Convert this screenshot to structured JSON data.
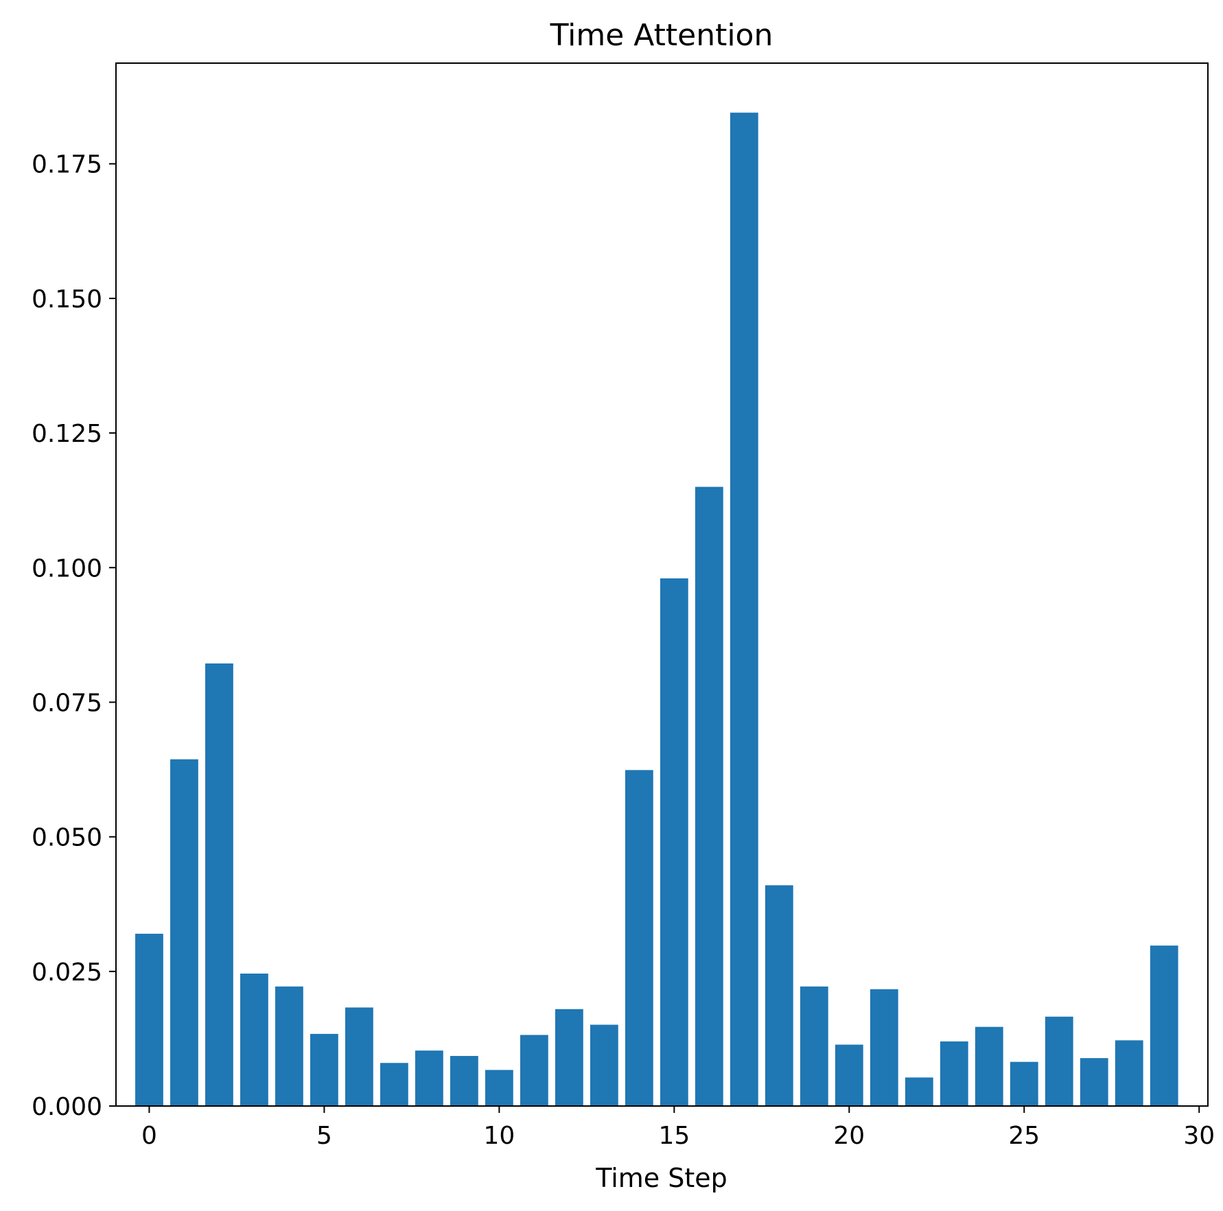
{
  "chart_data": {
    "type": "bar",
    "title": "Time Attention",
    "xlabel": "Time Step",
    "ylabel": "",
    "x": [
      0,
      1,
      2,
      3,
      4,
      5,
      6,
      7,
      8,
      9,
      10,
      11,
      12,
      13,
      14,
      15,
      16,
      17,
      18,
      19,
      20,
      21,
      22,
      23,
      24,
      25,
      26,
      27,
      28,
      29
    ],
    "values": [
      0.032,
      0.0644,
      0.0822,
      0.0246,
      0.0222,
      0.0134,
      0.0183,
      0.008,
      0.0103,
      0.0093,
      0.0067,
      0.0132,
      0.018,
      0.0151,
      0.0624,
      0.098,
      0.115,
      0.1845,
      0.041,
      0.0222,
      0.0114,
      0.0217,
      0.0053,
      0.012,
      0.0147,
      0.0082,
      0.0166,
      0.0089,
      0.0122,
      0.0298
    ],
    "xlim": [
      -0.95,
      30.25
    ],
    "ylim": [
      0,
      0.1937
    ],
    "xticks": [
      0,
      5,
      10,
      15,
      20,
      25,
      30
    ],
    "xtick_labels": [
      "0",
      "5",
      "10",
      "15",
      "20",
      "25",
      "30"
    ],
    "yticks": [
      0,
      0.025,
      0.05,
      0.075,
      0.1,
      0.125,
      0.15,
      0.175
    ],
    "ytick_labels": [
      "0.000",
      "0.025",
      "0.050",
      "0.075",
      "0.100",
      "0.125",
      "0.150",
      "0.175"
    ],
    "bar_color": "#1f77b4",
    "grid": false,
    "legend": "none"
  }
}
